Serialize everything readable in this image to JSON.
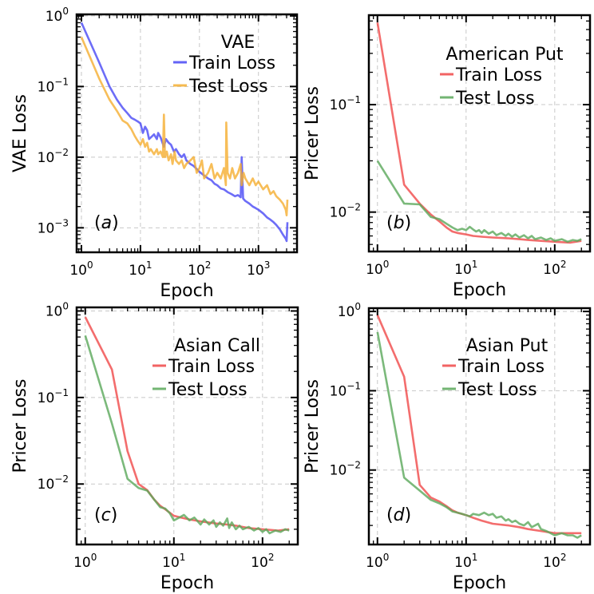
{
  "chart_data": [
    {
      "type": "line",
      "panel_tag": "(a)",
      "legend_title": "VAE",
      "legend_position": "top-right",
      "xlabel": "Epoch",
      "ylabel": "VAE Loss",
      "xscale": "log",
      "yscale": "log",
      "xlim": [
        0.83,
        4500
      ],
      "ylim": [
        0.00045,
        1.05
      ],
      "xticks": [
        1,
        10,
        100,
        1000
      ],
      "xtick_labels": [
        "10^0",
        "10^1",
        "10^2",
        "10^3"
      ],
      "yticks": [
        0.001,
        0.01,
        0.1,
        1
      ],
      "ytick_labels": [
        "10^-3",
        "10^-2",
        "10^-1",
        "10^0"
      ],
      "grid": true,
      "series": [
        {
          "name": "Train Loss",
          "color": "#4848f5",
          "x": [
            1,
            2,
            3,
            4,
            5,
            6,
            7,
            8,
            9,
            10,
            11,
            12,
            13,
            14,
            15,
            17,
            19,
            20,
            22,
            25,
            27,
            30,
            33,
            37,
            40,
            45,
            50,
            55,
            60,
            70,
            80,
            90,
            100,
            120,
            140,
            160,
            180,
            200,
            230,
            260,
            300,
            350,
            400,
            450,
            500,
            520,
            550,
            600,
            700,
            800,
            900,
            1000,
            1200,
            1400,
            1600,
            1800,
            2000,
            2300,
            2600,
            2900,
            3000,
            3100
          ],
          "y": [
            0.8,
            0.22,
            0.1,
            0.065,
            0.05,
            0.042,
            0.036,
            0.034,
            0.032,
            0.03,
            0.022,
            0.027,
            0.024,
            0.018,
            0.019,
            0.021,
            0.018,
            0.022,
            0.019,
            0.014,
            0.018,
            0.016,
            0.015,
            0.012,
            0.013,
            0.011,
            0.01,
            0.011,
            0.009,
            0.008,
            0.0075,
            0.0068,
            0.0062,
            0.0055,
            0.005,
            0.0047,
            0.0042,
            0.004,
            0.0036,
            0.0035,
            0.0032,
            0.003,
            0.0028,
            0.0029,
            0.0027,
            0.01,
            0.0026,
            0.0024,
            0.0022,
            0.002,
            0.0019,
            0.0018,
            0.0016,
            0.0014,
            0.0013,
            0.0012,
            0.0011,
            0.00095,
            0.0008,
            0.0007,
            0.00065,
            0.0012
          ]
        },
        {
          "name": "Test Loss",
          "color": "#f5ae30",
          "x": [
            1,
            2,
            3,
            4,
            5,
            6,
            7,
            8,
            9,
            10,
            11,
            12,
            13,
            14,
            15,
            17,
            19,
            20,
            22,
            24,
            25,
            26,
            28,
            30,
            33,
            35,
            38,
            40,
            45,
            50,
            55,
            60,
            70,
            80,
            90,
            100,
            110,
            120,
            140,
            160,
            180,
            200,
            230,
            260,
            280,
            285,
            300,
            330,
            360,
            400,
            450,
            500,
            520,
            560,
            600,
            700,
            800,
            900,
            1000,
            1200,
            1400,
            1600,
            1800,
            2000,
            2300,
            2600,
            2900,
            3000,
            3100
          ],
          "y": [
            0.5,
            0.13,
            0.065,
            0.045,
            0.033,
            0.03,
            0.025,
            0.02,
            0.017,
            0.015,
            0.018,
            0.014,
            0.016,
            0.012,
            0.013,
            0.011,
            0.013,
            0.011,
            0.012,
            0.01,
            0.04,
            0.01,
            0.012,
            0.009,
            0.011,
            0.008,
            0.012,
            0.009,
            0.008,
            0.009,
            0.007,
            0.008,
            0.009,
            0.01,
            0.006,
            0.007,
            0.009,
            0.005,
            0.006,
            0.008,
            0.005,
            0.006,
            0.005,
            0.007,
            0.004,
            0.031,
            0.006,
            0.005,
            0.007,
            0.005,
            0.006,
            0.008,
            0.004,
            0.006,
            0.005,
            0.004,
            0.005,
            0.004,
            0.0045,
            0.0035,
            0.004,
            0.003,
            0.0033,
            0.0028,
            0.0025,
            0.0022,
            0.0018,
            0.0015,
            0.0025
          ]
        }
      ]
    },
    {
      "type": "line",
      "panel_tag": "(b)",
      "legend_title": "American Put",
      "legend_position": "top-right",
      "xlabel": "Epoch",
      "ylabel": "Pricer Loss",
      "xscale": "log",
      "yscale": "log",
      "xlim": [
        0.8,
        250
      ],
      "ylim": [
        0.0043,
        0.68
      ],
      "xticks": [
        1,
        10,
        100
      ],
      "xtick_labels": [
        "10^0",
        "10^1",
        "10^2"
      ],
      "yticks": [
        0.01,
        0.1
      ],
      "ytick_labels": [
        "10^-2",
        "10^-1"
      ],
      "grid": true,
      "series": [
        {
          "name": "Train Loss",
          "color": "#f04848",
          "x": [
            1,
            2,
            3,
            4,
            5,
            6,
            7,
            8,
            10,
            12,
            15,
            20,
            30,
            40,
            50,
            70,
            100,
            150,
            200
          ],
          "y": [
            0.58,
            0.018,
            0.012,
            0.0095,
            0.0082,
            0.0072,
            0.0066,
            0.0064,
            0.0062,
            0.006,
            0.0059,
            0.0058,
            0.0057,
            0.0056,
            0.0055,
            0.0054,
            0.0053,
            0.0052,
            0.0054
          ]
        },
        {
          "name": "Test Loss",
          "color": "#5aa85a",
          "x": [
            1,
            2,
            3,
            4,
            5,
            6,
            7,
            8,
            9,
            10,
            11,
            12,
            13,
            14,
            15,
            16,
            18,
            20,
            22,
            25,
            28,
            30,
            33,
            36,
            40,
            45,
            50,
            55,
            60,
            70,
            80,
            90,
            100,
            120,
            140,
            160,
            180,
            200
          ],
          "y": [
            0.03,
            0.012,
            0.0118,
            0.009,
            0.0086,
            0.0078,
            0.0072,
            0.0068,
            0.007,
            0.0068,
            0.0073,
            0.0069,
            0.0066,
            0.0068,
            0.0064,
            0.0068,
            0.0063,
            0.0066,
            0.0061,
            0.0064,
            0.006,
            0.0063,
            0.0059,
            0.0062,
            0.0058,
            0.0061,
            0.0057,
            0.006,
            0.0056,
            0.0058,
            0.0055,
            0.0057,
            0.0054,
            0.0056,
            0.0053,
            0.0055,
            0.0054,
            0.0056
          ]
        }
      ]
    },
    {
      "type": "line",
      "panel_tag": "(c)",
      "legend_title": "Asian Call",
      "legend_position": "top-right",
      "xlabel": "Epoch",
      "ylabel": "Pricer Loss",
      "xscale": "log",
      "yscale": "log",
      "xlim": [
        0.8,
        250
      ],
      "ylim": [
        0.002,
        1.1
      ],
      "xticks": [
        1,
        10,
        100
      ],
      "xtick_labels": [
        "10^0",
        "10^1",
        "10^2"
      ],
      "yticks": [
        0.01,
        0.1,
        1
      ],
      "ytick_labels": [
        "10^-2",
        "10^-1",
        "10^0"
      ],
      "grid": true,
      "series": [
        {
          "name": "Train Loss",
          "color": "#f04848",
          "x": [
            1,
            2,
            3,
            4,
            5,
            6,
            7,
            8,
            10,
            12,
            15,
            20,
            30,
            40,
            50,
            70,
            100,
            150,
            200
          ],
          "y": [
            0.85,
            0.21,
            0.024,
            0.01,
            0.0085,
            0.0066,
            0.0056,
            0.0051,
            0.0043,
            0.0041,
            0.0039,
            0.0037,
            0.0035,
            0.0034,
            0.0033,
            0.0031,
            0.003,
            0.0029,
            0.003
          ]
        },
        {
          "name": "Test Loss",
          "color": "#5aa85a",
          "x": [
            1,
            2,
            3,
            4,
            5,
            6,
            7,
            8,
            9,
            10,
            12,
            13,
            15,
            17,
            20,
            22,
            25,
            28,
            30,
            33,
            36,
            40,
            42,
            45,
            50,
            55,
            60,
            70,
            80,
            90,
            100,
            110,
            120,
            140,
            160,
            180,
            200
          ],
          "y": [
            0.52,
            0.05,
            0.0115,
            0.009,
            0.0084,
            0.0066,
            0.0054,
            0.0052,
            0.0046,
            0.0038,
            0.0042,
            0.0044,
            0.0038,
            0.0041,
            0.0034,
            0.0039,
            0.0034,
            0.0038,
            0.0032,
            0.0036,
            0.0033,
            0.004,
            0.0031,
            0.0036,
            0.003,
            0.0033,
            0.003,
            0.0032,
            0.0029,
            0.0031,
            0.0028,
            0.003,
            0.0027,
            0.0029,
            0.0028,
            0.003,
            0.0029
          ]
        }
      ]
    },
    {
      "type": "line",
      "panel_tag": "(d)",
      "legend_title": "Asian Put",
      "legend_position": "top-right",
      "xlabel": "Epoch",
      "ylabel": "Pricer Loss",
      "xscale": "log",
      "yscale": "log",
      "xlim": [
        0.8,
        250
      ],
      "ylim": [
        0.00115,
        1.1
      ],
      "xticks": [
        1,
        10,
        100
      ],
      "xtick_labels": [
        "10^0",
        "10^1",
        "10^2"
      ],
      "yticks": [
        0.01,
        0.1,
        1
      ],
      "ytick_labels": [
        "10^-2",
        "10^-1",
        "10^0"
      ],
      "grid": true,
      "series": [
        {
          "name": "Train Loss",
          "color": "#f04848",
          "x": [
            1,
            2,
            3,
            4,
            5,
            6,
            7,
            8,
            10,
            12,
            15,
            20,
            30,
            40,
            50,
            70,
            100,
            150,
            200
          ],
          "y": [
            0.9,
            0.15,
            0.0065,
            0.0045,
            0.004,
            0.0035,
            0.0031,
            0.0029,
            0.0027,
            0.0025,
            0.0023,
            0.0021,
            0.002,
            0.0019,
            0.0018,
            0.0017,
            0.0016,
            0.0016,
            0.0016
          ]
        },
        {
          "name": "Test Loss",
          "color": "#5aa85a",
          "x": [
            1,
            2,
            3,
            4,
            5,
            6,
            7,
            8,
            9,
            10,
            11,
            12,
            14,
            16,
            18,
            20,
            22,
            25,
            28,
            30,
            33,
            36,
            40,
            45,
            50,
            55,
            60,
            65,
            70,
            80,
            90,
            100,
            120,
            140,
            160,
            180,
            200
          ],
          "y": [
            0.55,
            0.008,
            0.0055,
            0.0042,
            0.0038,
            0.0034,
            0.003,
            0.0029,
            0.0028,
            0.0027,
            0.0026,
            0.0028,
            0.0027,
            0.0029,
            0.0027,
            0.0028,
            0.0025,
            0.0026,
            0.0023,
            0.0024,
            0.0022,
            0.0023,
            0.0021,
            0.002,
            0.0022,
            0.0019,
            0.002,
            0.0021,
            0.0018,
            0.0017,
            0.0016,
            0.0015,
            0.0016,
            0.0015,
            0.0015,
            0.0014,
            0.0015
          ]
        }
      ]
    }
  ]
}
